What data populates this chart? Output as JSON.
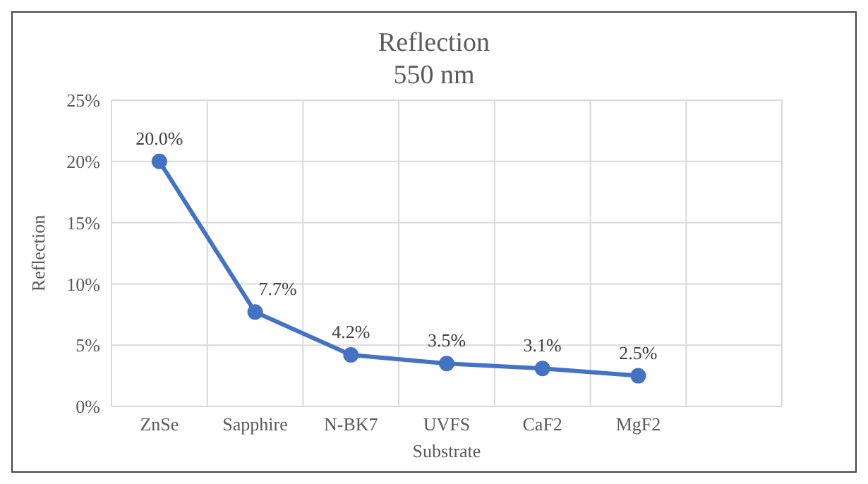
{
  "chart_data": {
    "type": "line",
    "title": "Reflection",
    "subtitle": "550 nm",
    "xlabel": "Substrate",
    "ylabel": "Reflection",
    "categories": [
      "ZnSe",
      "Sapphire",
      "N-BK7",
      "UVFS",
      "CaF2",
      "MgF2",
      null
    ],
    "series": [
      {
        "color": "#4472c4",
        "values": [
          20.0,
          7.7,
          4.2,
          3.5,
          3.1,
          2.5,
          null
        ],
        "value_labels": [
          "20.0%",
          "7.7%",
          "4.2%",
          "3.5%",
          "3.1%",
          "2.5%",
          null
        ]
      }
    ],
    "ylim": [
      0,
      25
    ],
    "yticks": [
      {
        "value": 0,
        "label": "0%"
      },
      {
        "value": 5,
        "label": "5%"
      },
      {
        "value": 10,
        "label": "10%"
      },
      {
        "value": 15,
        "label": "15%"
      },
      {
        "value": 20,
        "label": "20%"
      },
      {
        "value": 25,
        "label": "25%"
      }
    ],
    "grid": true,
    "marker": "circle",
    "line_style": "solid"
  }
}
